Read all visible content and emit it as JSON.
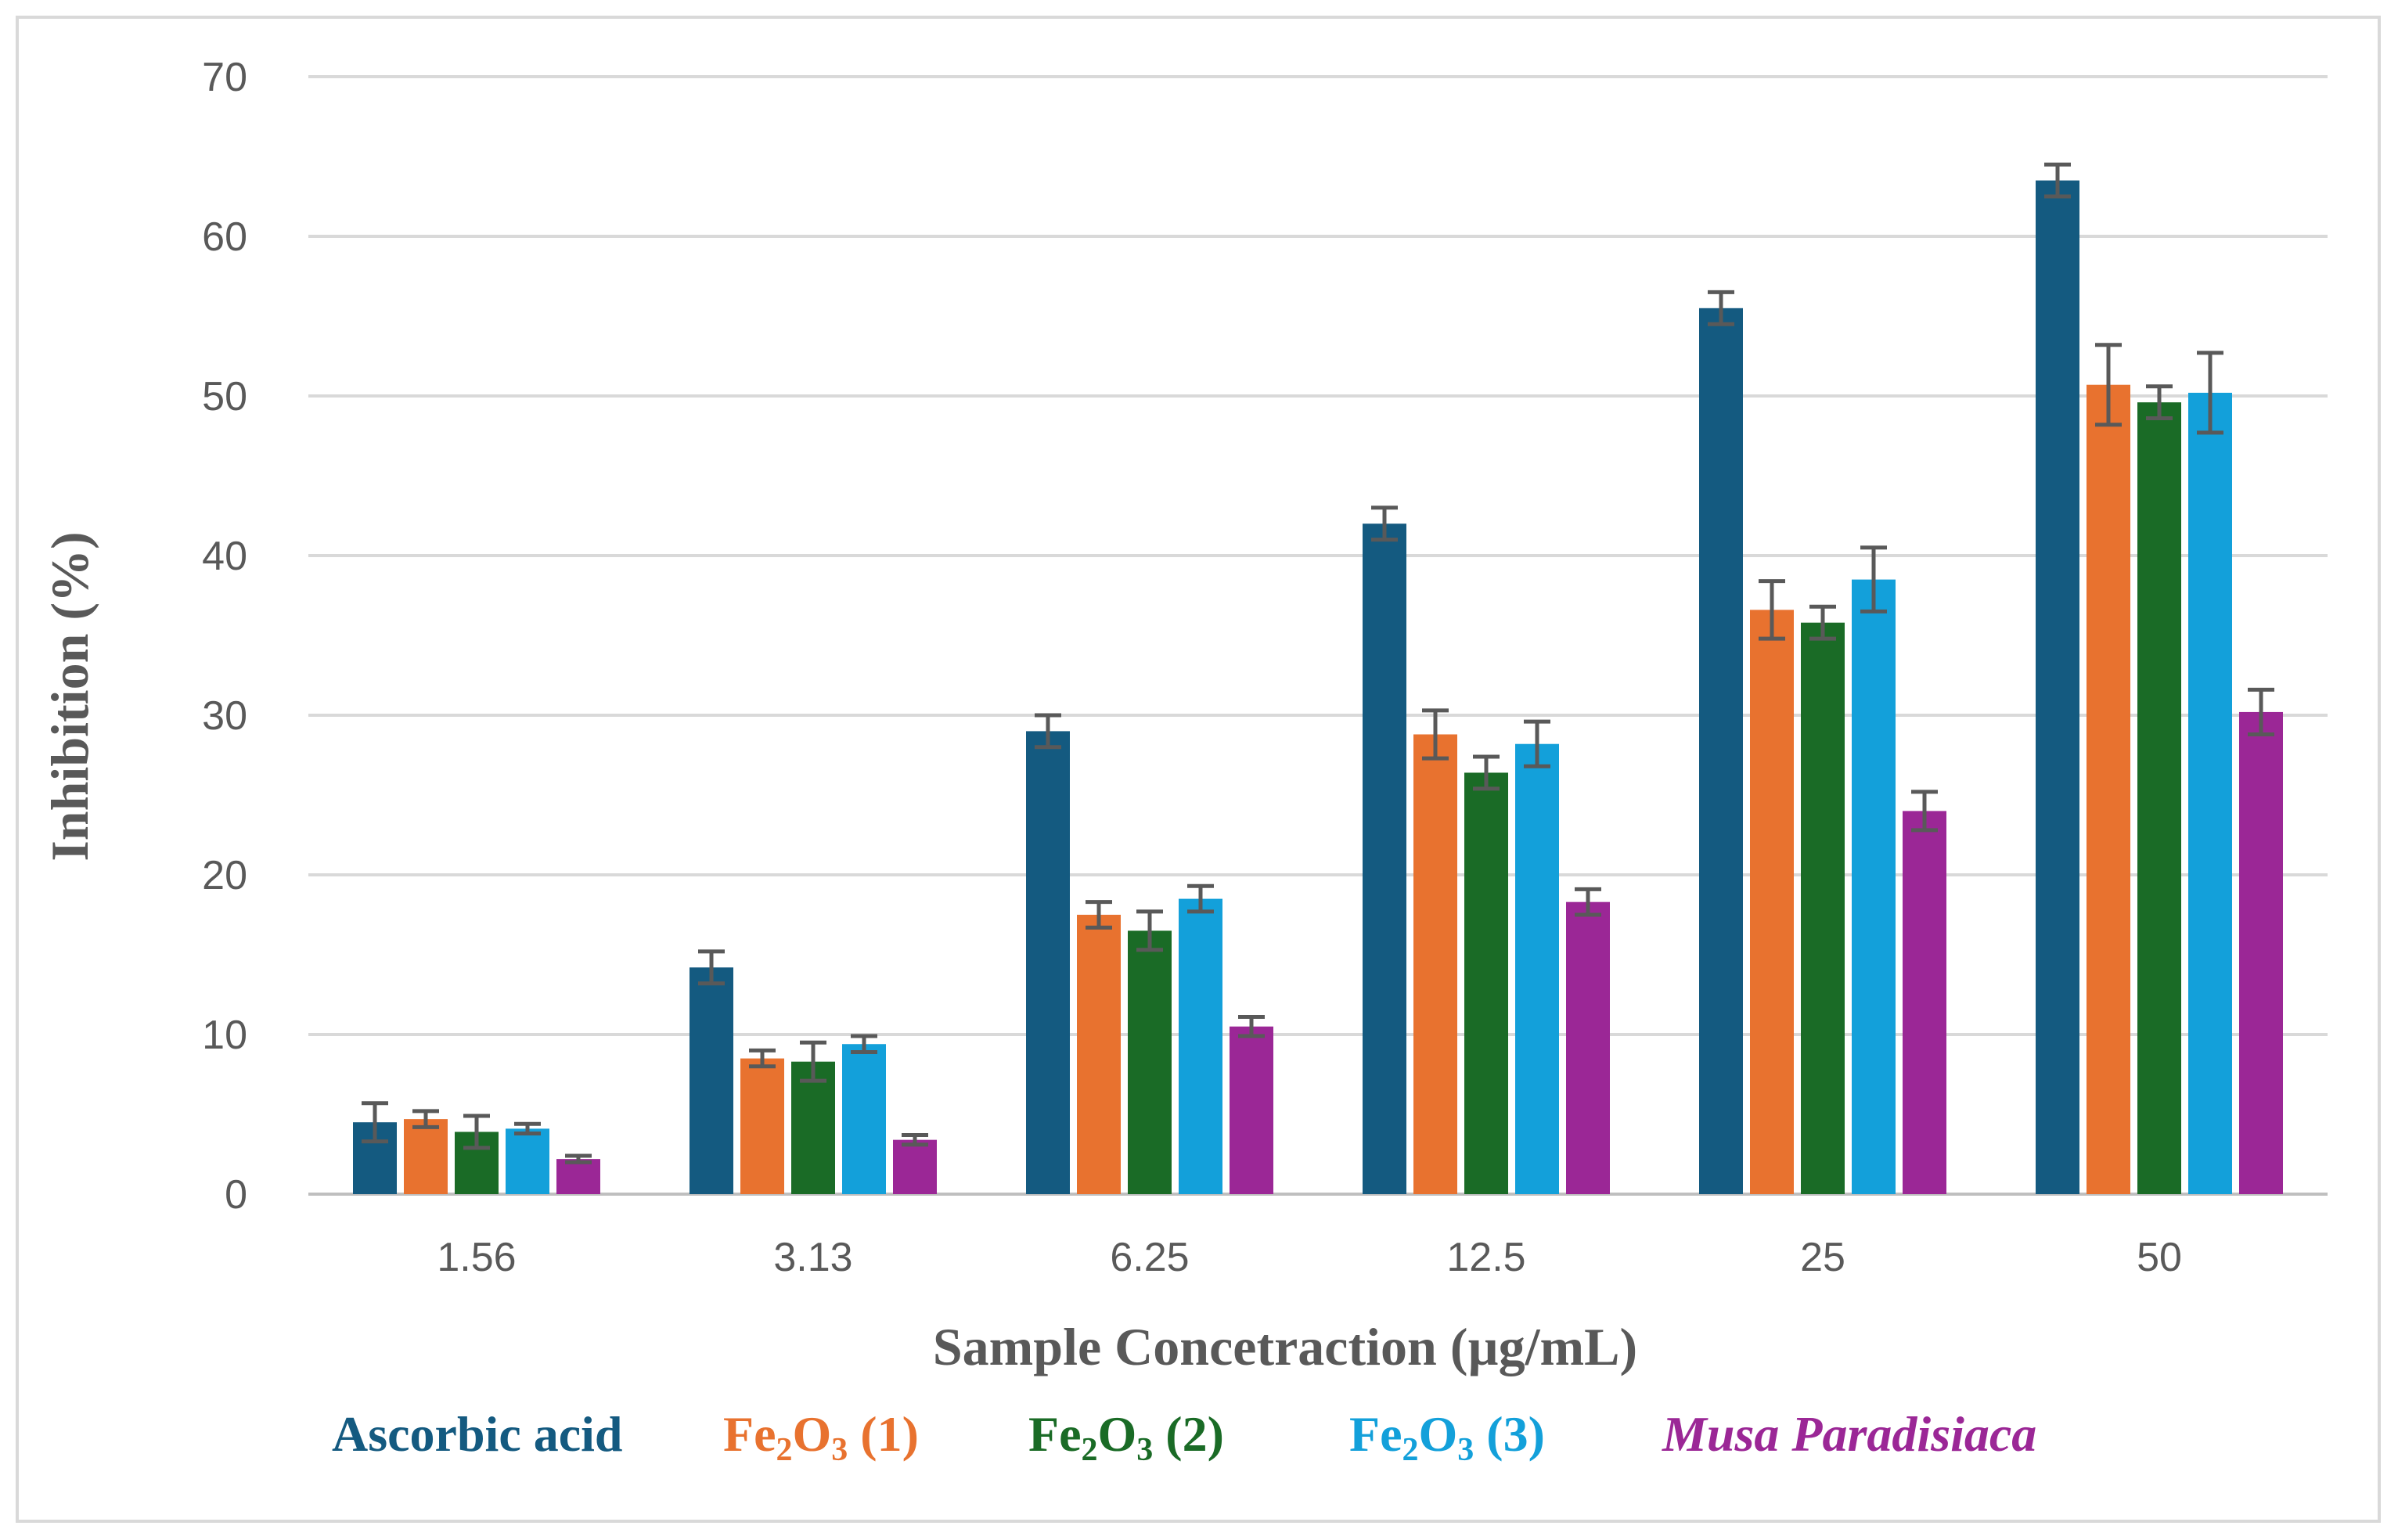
{
  "chart_data": {
    "type": "bar",
    "title": "",
    "xlabel": "Sample Concetraction (µg/mL)",
    "ylabel": "Inhibition  (%)",
    "ylim": [
      0,
      70
    ],
    "yticks": [
      0,
      10,
      20,
      30,
      40,
      50,
      60,
      70
    ],
    "grid": true,
    "legend_position": "bottom",
    "categories": [
      "1.56",
      "3.13",
      "6.25",
      "12.5",
      "25",
      "50"
    ],
    "series": [
      {
        "name": "Ascorbic acid",
        "legend": {
          "parts": [
            {
              "text": "Ascorbic acid",
              "sub": false
            }
          ],
          "italic": false
        },
        "color": "#145a80",
        "values": [
          4.5,
          14.2,
          29.0,
          42.0,
          55.5,
          63.5
        ],
        "errors": [
          1.2,
          1.0,
          1.0,
          1.0,
          1.0,
          1.0
        ]
      },
      {
        "name": "Fe2O3 (1)",
        "legend": {
          "parts": [
            {
              "text": "Fe",
              "sub": false
            },
            {
              "text": "2",
              "sub": true
            },
            {
              "text": "O",
              "sub": false
            },
            {
              "text": "3",
              "sub": true
            },
            {
              "text": " (1)",
              "sub": false
            }
          ],
          "italic": false
        },
        "color": "#e8722f",
        "values": [
          4.7,
          8.5,
          17.5,
          28.8,
          36.6,
          50.7
        ],
        "errors": [
          0.5,
          0.5,
          0.8,
          1.5,
          1.8,
          2.5
        ]
      },
      {
        "name": "Fe2O3 (2)",
        "legend": {
          "parts": [
            {
              "text": "Fe",
              "sub": false
            },
            {
              "text": "2",
              "sub": true
            },
            {
              "text": "O",
              "sub": false
            },
            {
              "text": "3",
              "sub": true
            },
            {
              "text": " (2)",
              "sub": false
            }
          ],
          "italic": false
        },
        "color": "#1a6b26",
        "values": [
          3.9,
          8.3,
          16.5,
          26.4,
          35.8,
          49.6
        ],
        "errors": [
          1.0,
          1.2,
          1.2,
          1.0,
          1.0,
          1.0
        ]
      },
      {
        "name": "Fe2O3 (3)",
        "legend": {
          "parts": [
            {
              "text": "Fe",
              "sub": false
            },
            {
              "text": "2",
              "sub": true
            },
            {
              "text": "O",
              "sub": false
            },
            {
              "text": "3",
              "sub": true
            },
            {
              "text": " (3)",
              "sub": false
            }
          ],
          "italic": false
        },
        "color": "#13a0da",
        "values": [
          4.1,
          9.4,
          18.5,
          28.2,
          38.5,
          50.2
        ],
        "errors": [
          0.3,
          0.5,
          0.8,
          1.4,
          2.0,
          2.5
        ]
      },
      {
        "name": "Musa Paradisiaca",
        "legend": {
          "parts": [
            {
              "text": "Musa Paradisiaca",
              "sub": false
            }
          ],
          "italic": true
        },
        "color": "#9b2796",
        "values": [
          2.2,
          3.4,
          10.5,
          18.3,
          24.0,
          30.2
        ],
        "errors": [
          0.2,
          0.3,
          0.6,
          0.8,
          1.2,
          1.4
        ]
      }
    ]
  }
}
